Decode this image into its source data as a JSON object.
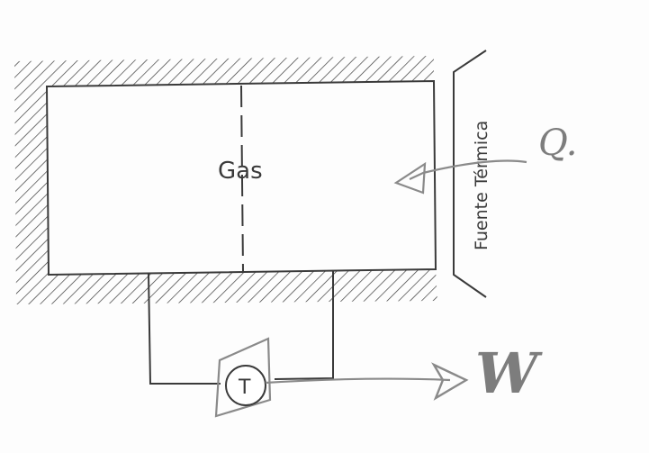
{
  "labels": {
    "gas": "Gas",
    "source": "Fuente Térmica",
    "heat": "Q.",
    "work": "W",
    "turbine": "T"
  },
  "colors": {
    "ink": "#3a3a3a",
    "pencil": "#8a8a8a",
    "paper": "#fdfdfd"
  }
}
